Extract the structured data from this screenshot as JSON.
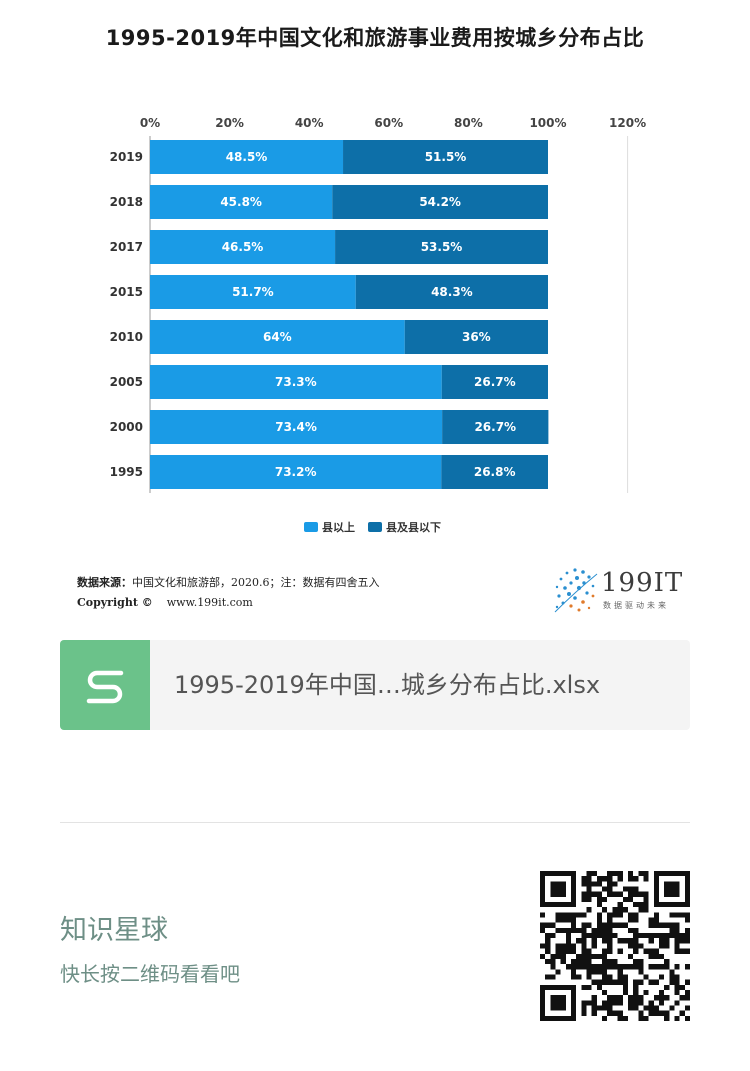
{
  "page": {
    "title": "1995-2019年中国文化和旅游事业费用按城乡分布占比"
  },
  "chart_data": {
    "type": "bar",
    "orientation": "horizontal",
    "stacked": true,
    "title": "1995-2019年中国文化和旅游事业费用按城乡分布占比",
    "categories": [
      "2019",
      "2018",
      "2017",
      "2015",
      "2010",
      "2005",
      "2000",
      "1995"
    ],
    "series": [
      {
        "name": "县以上",
        "color": "#1a9be6",
        "values": [
          48.5,
          45.8,
          46.5,
          51.7,
          64,
          73.3,
          73.4,
          73.2
        ],
        "labels": [
          "48.5%",
          "45.8%",
          "46.5%",
          "51.7%",
          "64%",
          "73.3%",
          "73.4%",
          "73.2%"
        ]
      },
      {
        "name": "县及县以下",
        "color": "#0d6fa8",
        "values": [
          51.5,
          54.2,
          53.5,
          48.3,
          36,
          26.7,
          26.7,
          26.8
        ],
        "labels": [
          "51.5%",
          "54.2%",
          "53.5%",
          "48.3%",
          "36%",
          "26.7%",
          "26.7%",
          "26.8%"
        ]
      }
    ],
    "xlim": [
      0,
      120
    ],
    "xticks": [
      0,
      20,
      40,
      60,
      80,
      100,
      120
    ],
    "xtick_labels": [
      "0%",
      "20%",
      "40%",
      "60%",
      "80%",
      "100%",
      "120%"
    ],
    "xaxis_position": "top",
    "legend_position": "bottom-center"
  },
  "source": {
    "label": "数据来源：",
    "text": "中国文化和旅游部，2020.6；注：数据有四舍五入",
    "copyright_label": "Copyright ©",
    "copyright_url": "www.199it.com"
  },
  "brand": {
    "name": "199IT",
    "tagline": "数据驱动未来"
  },
  "file_card": {
    "icon_letter": "S",
    "filename": "1995-2019年中国…城乡分布占比.xlsx",
    "icon_color": "#6bc28a"
  },
  "planet": {
    "title": "知识星球",
    "subtitle": "快长按二维码看看吧"
  }
}
